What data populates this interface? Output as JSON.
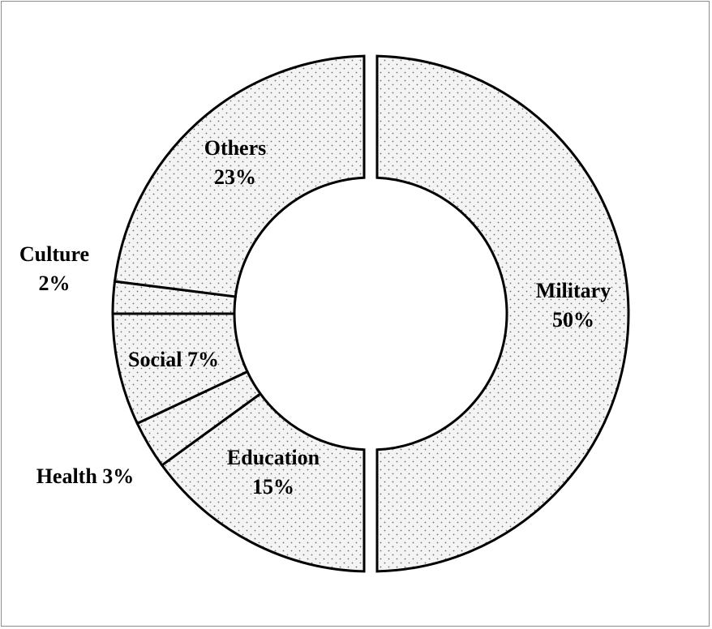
{
  "chart_data": {
    "type": "pie",
    "variant": "donut",
    "title": "",
    "slices": [
      {
        "key": "military",
        "name": "Military",
        "value": 50,
        "label_lines": [
          "Military",
          "50%"
        ]
      },
      {
        "key": "education",
        "name": "Education",
        "value": 15,
        "label_lines": [
          "Education",
          "15%"
        ]
      },
      {
        "key": "health",
        "name": "Health",
        "value": 3,
        "label_lines": [
          "Health 3%"
        ]
      },
      {
        "key": "social",
        "name": "Social",
        "value": 7,
        "label_lines": [
          "Social 7%"
        ]
      },
      {
        "key": "culture",
        "name": "Culture",
        "value": 2,
        "label_lines": [
          "Culture",
          "2%"
        ]
      },
      {
        "key": "others",
        "name": "Others",
        "value": 23,
        "label_lines": [
          "Others",
          "23%"
        ]
      }
    ],
    "start": "top",
    "direction": "clockwise",
    "legend": "none",
    "fill_pattern": "dotted",
    "colors": {
      "fill": "#f4f4f4",
      "dots": "#6e6e6e",
      "outline": "#000000"
    }
  }
}
